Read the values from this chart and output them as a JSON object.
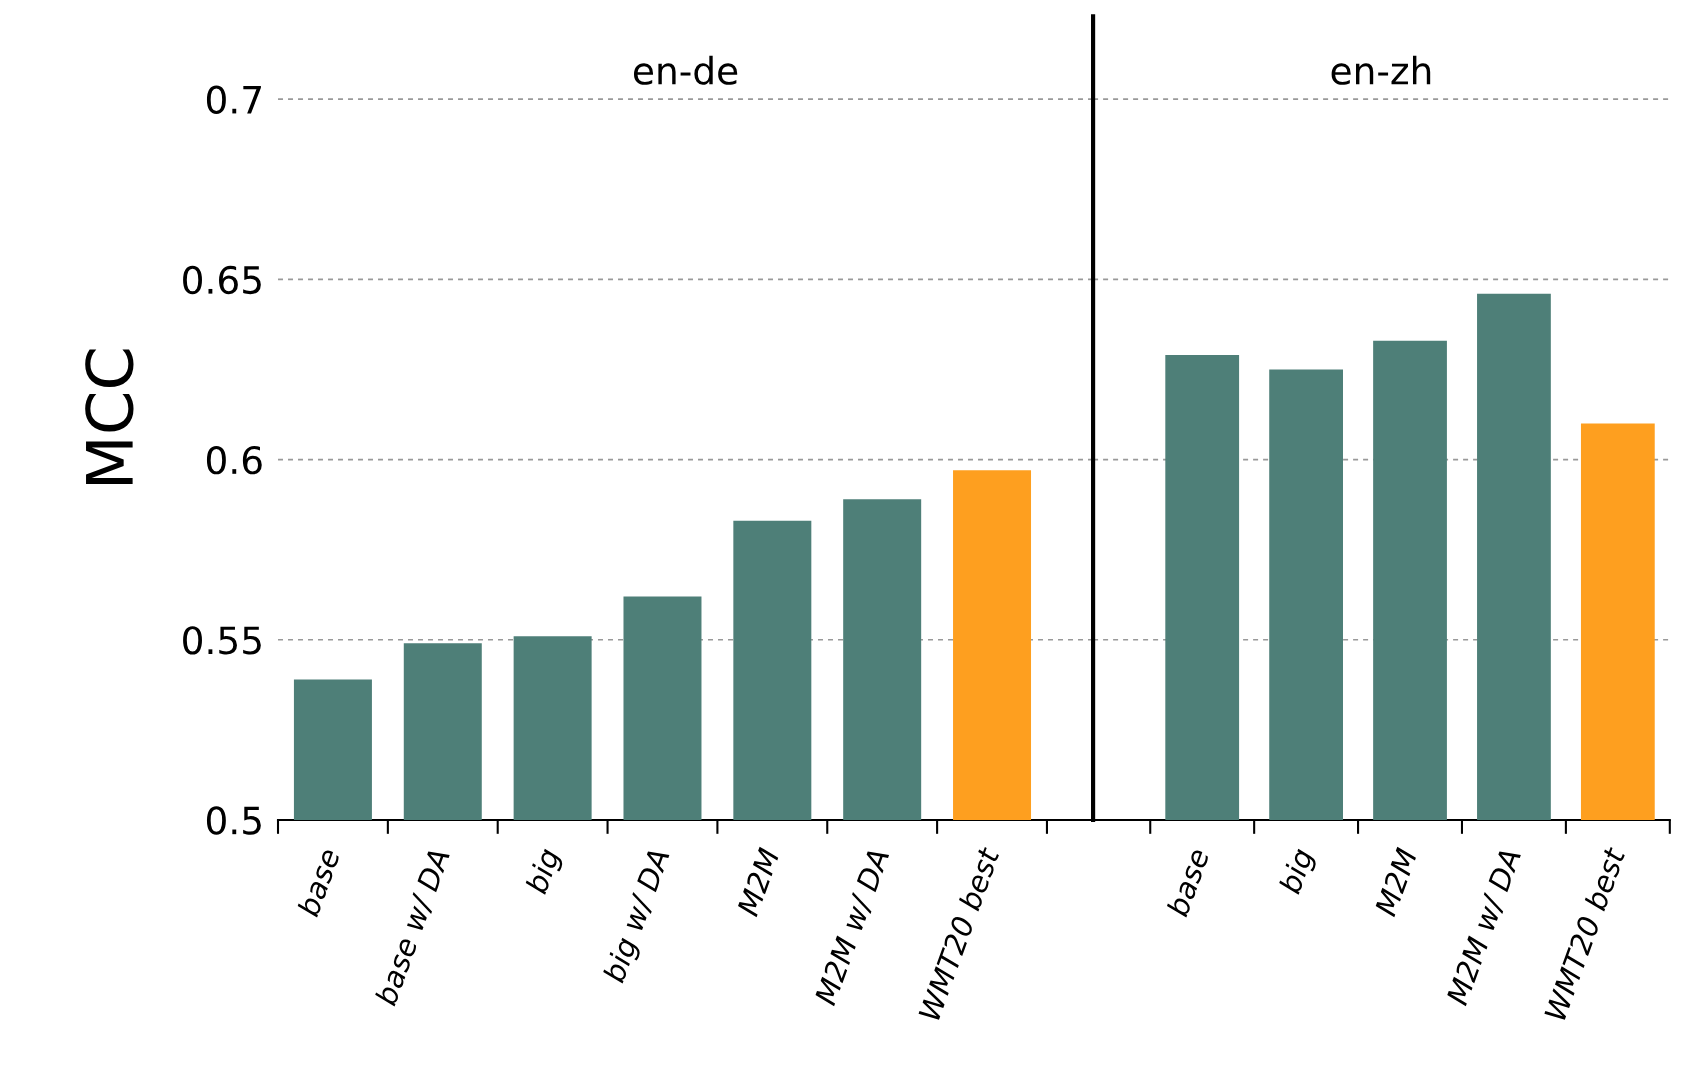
{
  "chart_data": [
    {
      "type": "bar",
      "title": "en-de",
      "ylabel": "MCC",
      "categories": [
        "base",
        "base w/ DA",
        "big",
        "big w/ DA",
        "M2M",
        "M2M w/ DA",
        "WMT20 best"
      ],
      "values": [
        0.539,
        0.549,
        0.551,
        0.562,
        0.583,
        0.589,
        0.597
      ],
      "colors": [
        "#4e7f78",
        "#4e7f78",
        "#4e7f78",
        "#4e7f78",
        "#4e7f78",
        "#4e7f78",
        "#fe9f1f"
      ],
      "ylim": [
        0.5,
        0.723
      ],
      "yticks": [
        0.5,
        0.55,
        0.6,
        0.65,
        0.7
      ],
      "grid": "y"
    },
    {
      "type": "bar",
      "title": "en-zh",
      "categories": [
        "base",
        "big",
        "M2M",
        "M2M w/ DA",
        "WMT20 best"
      ],
      "values": [
        0.629,
        0.625,
        0.633,
        0.646,
        0.61
      ],
      "colors": [
        "#4e7f78",
        "#4e7f78",
        "#4e7f78",
        "#4e7f78",
        "#fe9f1f"
      ],
      "ylim": [
        0.5,
        0.723
      ],
      "yticks": [
        0.5,
        0.55,
        0.6,
        0.65,
        0.7
      ],
      "grid": "y",
      "tick_labels": "x"
    }
  ]
}
